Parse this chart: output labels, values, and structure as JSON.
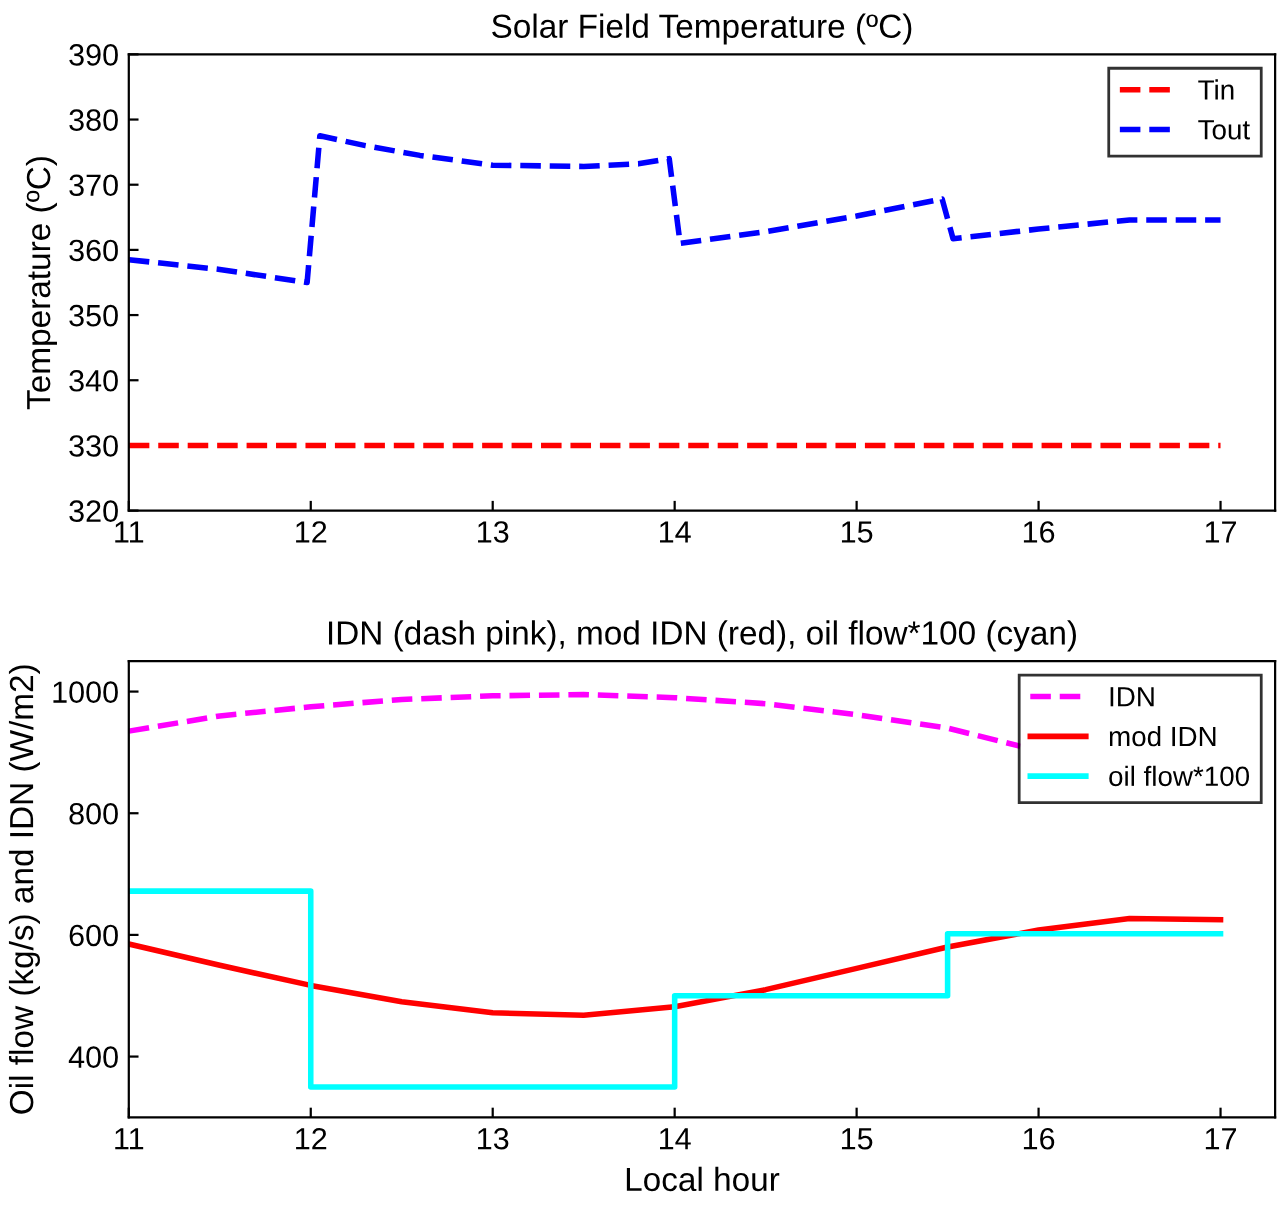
{
  "chart_data": [
    {
      "type": "line",
      "title": "Solar Field Temperature (ºC)",
      "ylabel": "Temperature (ºC)",
      "xlim": [
        11,
        17.3
      ],
      "ylim": [
        320,
        390
      ],
      "xticks": [
        11,
        12,
        13,
        14,
        15,
        16,
        17
      ],
      "yticks": [
        320,
        330,
        340,
        350,
        360,
        370,
        380,
        390
      ],
      "legend": "top right",
      "line_style": "dashed",
      "series": [
        {
          "name": "Tin",
          "color": "#ff0000",
          "x": [
            11,
            17
          ],
          "values": [
            330,
            330
          ]
        },
        {
          "name": "Tout",
          "color": "#0000ff",
          "x": [
            11,
            11.5,
            11.98,
            12.05,
            12.3,
            12.6,
            13,
            13.5,
            13.8,
            13.97,
            14.03,
            14.5,
            15,
            15.47,
            15.53,
            16,
            16.5,
            17
          ],
          "values": [
            358.5,
            357,
            355,
            377.5,
            376,
            374.5,
            373,
            372.8,
            373.2,
            374,
            361,
            362.8,
            365.2,
            367.8,
            361.7,
            363.2,
            364.6,
            364.6
          ]
        }
      ]
    },
    {
      "type": "line",
      "title": "IDN (dash pink), mod IDN (red), oil flow*100 (cyan)",
      "xlabel": "Local hour",
      "ylabel": "Oil flow (kg/s) and IDN (W/m2)",
      "xlim": [
        11,
        17.3
      ],
      "ylim": [
        300,
        1050
      ],
      "xticks": [
        11,
        12,
        13,
        14,
        15,
        16,
        17
      ],
      "yticks": [
        400,
        600,
        800,
        1000
      ],
      "legend": "top right",
      "series": [
        {
          "name": "IDN",
          "color": "#ff00ff",
          "line_style": "dashed",
          "x": [
            11,
            11.5,
            12,
            12.5,
            13,
            13.5,
            14,
            14.5,
            15,
            15.5,
            15.9
          ],
          "values": [
            935,
            960,
            975,
            987,
            993,
            995,
            990,
            980,
            962,
            940,
            910
          ]
        },
        {
          "name": "mod IDN",
          "color": "#ff0000",
          "line_style": "solid",
          "x": [
            11,
            11.5,
            12,
            12.5,
            13,
            13.5,
            14,
            14.5,
            15,
            15.5,
            16,
            16.5,
            17
          ],
          "values": [
            585,
            550,
            517,
            490,
            472,
            468,
            482,
            510,
            545,
            580,
            608,
            627,
            625
          ]
        },
        {
          "name": "oil flow*100",
          "type": "step",
          "color": "#00ffff",
          "line_style": "solid",
          "x": [
            11,
            12,
            14,
            15.5,
            17
          ],
          "values": [
            672,
            350,
            500,
            602,
            602
          ]
        }
      ]
    }
  ]
}
